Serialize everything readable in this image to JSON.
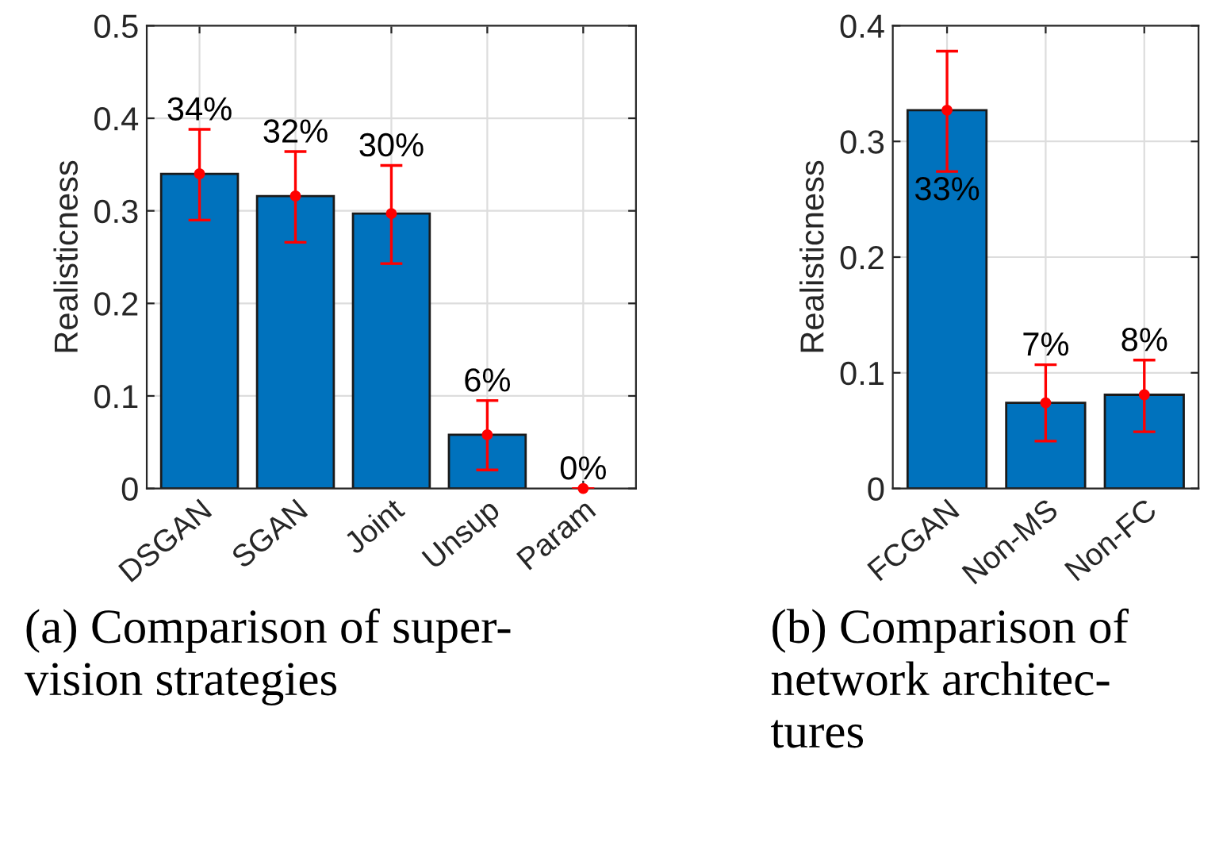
{
  "chart_data": [
    {
      "type": "bar",
      "ylabel": "Realisticness",
      "categories": [
        "DSGAN",
        "SGAN",
        "Joint",
        "Unsup",
        "Param"
      ],
      "values": [
        0.34,
        0.316,
        0.297,
        0.058,
        0
      ],
      "errors": [
        [
          0.29,
          0.388
        ],
        [
          0.266,
          0.364
        ],
        [
          0.243,
          0.349
        ],
        [
          0.02,
          0.095
        ],
        [
          0,
          0
        ]
      ],
      "value_labels": [
        "34%",
        "32%",
        "30%",
        "6%",
        "0%"
      ],
      "series": [
        {
          "type": "scatter",
          "x": [
            "DSGAN",
            "SGAN",
            "Joint",
            "Unsup",
            "Param"
          ],
          "values": [
            0.34,
            0.316,
            0.297,
            0.058,
            0
          ],
          "color": "#ff0000"
        }
      ],
      "color": "#0072bd",
      "ylim": [
        0,
        0.5
      ],
      "yticks": [
        0,
        0.1,
        0.2,
        0.3,
        0.4,
        0.5
      ],
      "grid": true,
      "annotations": [
        "(a) Comparison of super-\nvision strategies"
      ]
    },
    {
      "type": "bar",
      "ylabel": "Realisticness",
      "categories": [
        "FCGAN",
        "Non-MS",
        "Non-FC"
      ],
      "values": [
        0.327,
        0.074,
        0.081
      ],
      "errors": [
        [
          0.274,
          0.378
        ],
        [
          0.041,
          0.107
        ],
        [
          0.049,
          0.111
        ]
      ],
      "value_labels": [
        "33%",
        "7%",
        "8%"
      ],
      "series": [
        {
          "type": "scatter",
          "x": [
            "FCGAN",
            "Non-MS",
            "Non-FC"
          ],
          "values": [
            0.327,
            0.074,
            0.081
          ],
          "color": "#ff0000"
        }
      ],
      "color": "#0072bd",
      "ylim": [
        0,
        0.4
      ],
      "yticks": [
        0,
        0.1,
        0.2,
        0.3,
        0.4
      ],
      "grid": true,
      "annotations": [
        "(b) Comparison of\nnetwork architec-\ntures"
      ]
    }
  ]
}
